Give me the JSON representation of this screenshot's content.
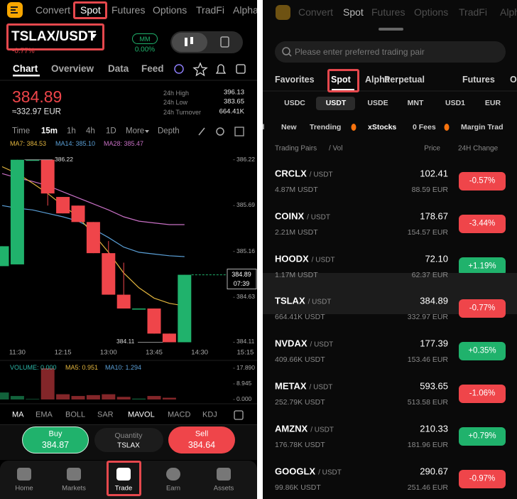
{
  "left": {
    "nav": [
      "Convert",
      "Spot",
      "Futures",
      "Options",
      "TradFi",
      "Alpha"
    ],
    "pair": "TSLAX/USDT",
    "pair_change": "-0.77%",
    "mm": "MM",
    "mm_value": "0.00%",
    "tabs": [
      "Chart",
      "Overview",
      "Data",
      "Feed"
    ],
    "price": "384.89",
    "price_eur": "≈332.97 EUR",
    "stats": [
      {
        "label": "24h High",
        "value": "396.13"
      },
      {
        "label": "24h Low",
        "value": "383.65"
      },
      {
        "label": "24h Turnover",
        "value": "664.41K"
      }
    ],
    "intervals": [
      "Time",
      "15m",
      "1h",
      "4h",
      "1D",
      "More",
      "Depth"
    ],
    "ma_legend": [
      {
        "text": "MA7: 384.53",
        "color": "#e2b53e"
      },
      {
        "text": "MA14: 385.10",
        "color": "#5a9fd6"
      },
      {
        "text": "MA28: 385.47",
        "color": "#c76fc4"
      }
    ],
    "chart": {
      "up_color": "#20b26c",
      "down_color": "#ef454a",
      "candles": [
        {
          "open": 384.99,
          "high": 385.22,
          "low": 384.99,
          "close": 385.22
        },
        {
          "open": 385.01,
          "high": 386.22,
          "low": 385.01,
          "close": 386.22
        },
        {
          "open": 386.22,
          "high": 386.22,
          "low": 386.22,
          "close": 386.22
        },
        {
          "open": 386.22,
          "high": 386.22,
          "low": 385.69,
          "close": 385.83
        },
        {
          "open": 385.79,
          "high": 385.79,
          "low": 385.6,
          "close": 385.6
        },
        {
          "open": 385.69,
          "high": 385.69,
          "low": 385.5,
          "close": 385.5
        },
        {
          "open": 385.5,
          "high": 385.5,
          "low": 385.14,
          "close": 385.14
        },
        {
          "open": 385.14,
          "high": 385.28,
          "low": 384.66,
          "close": 384.66
        },
        {
          "open": 384.66,
          "high": 385.03,
          "low": 384.5,
          "close": 384.5
        },
        {
          "open": 384.5,
          "high": 384.5,
          "low": 384.5,
          "close": 384.5
        },
        {
          "open": 384.5,
          "high": 384.5,
          "low": 384.21,
          "close": 384.21
        },
        {
          "open": 384.21,
          "high": 384.21,
          "low": 384.11,
          "close": 384.11
        },
        {
          "open": 384.11,
          "high": 384.89,
          "low": 384.11,
          "close": 384.89
        }
      ],
      "ma7": [
        386.14,
        386.06,
        385.95,
        385.83,
        385.69,
        385.56,
        385.36,
        385.15,
        384.91,
        384.74,
        384.62,
        384.56,
        384.53
      ],
      "ma14": [
        385.69,
        385.66,
        385.64,
        385.6,
        385.56,
        385.51,
        385.42,
        385.32,
        385.21,
        385.15,
        385.13,
        385.11,
        385.1
      ],
      "ma28": [
        386.06,
        386.01,
        385.97,
        385.92,
        385.85,
        385.78,
        385.71,
        385.64,
        385.56,
        385.51,
        385.49,
        385.47,
        385.47
      ],
      "ylim": [
        384.04,
        386.3
      ],
      "yticks": [
        386.22,
        385.69,
        385.16,
        384.63,
        384.11
      ],
      "xticks": [
        "11:30",
        "12:15",
        "13:00",
        "13:45",
        "14:30",
        "15:15"
      ],
      "high_label": "386.22",
      "low_label": "384.11",
      "last_price": "384.89",
      "countdown": "07:39",
      "volume": {
        "legend": [
          {
            "text": "VOLUME: 0.000",
            "color": "#2bb5a6"
          },
          {
            "text": "MA5: 0.951",
            "color": "#e2b53e"
          },
          {
            "text": "MA10: 1.294",
            "color": "#5a9fd6"
          }
        ],
        "values": [
          4,
          2,
          0.3,
          17.89,
          3,
          2,
          2.5,
          3,
          1.5,
          0.5,
          2,
          1,
          0
        ],
        "ylim": [
          0,
          19.92
        ],
        "yticks": [
          {
            "value": 17.89,
            "label": "17.890"
          },
          {
            "value": 8.945,
            "label": "8.945"
          },
          {
            "value": 0,
            "label": "0.000"
          }
        ]
      }
    },
    "indicators": [
      "MA",
      "EMA",
      "BOLL",
      "SAR",
      "MAVOL",
      "MACD",
      "KDJ"
    ],
    "buy": {
      "label": "Buy",
      "price": "384.87"
    },
    "quantity": {
      "label": "Quantity",
      "asset": "TSLAX"
    },
    "sell": {
      "label": "Sell",
      "price": "384.64"
    },
    "bottom_nav": [
      "Home",
      "Markets",
      "Trade",
      "Earn",
      "Assets"
    ]
  },
  "right": {
    "nav": [
      "Convert",
      "Spot",
      "Futures",
      "Options",
      "TradFi",
      "Alpha"
    ],
    "search_placeholder": "Please enter preferred trading pair",
    "tabs": [
      "Favorites",
      "Spot",
      "Alpha",
      "Perpetual",
      "Futures",
      "O"
    ],
    "quotes": [
      "USDC",
      "USDT",
      "USDE",
      "MNT",
      "USD1",
      "EUR"
    ],
    "filters": [
      "All",
      "New",
      "Trending",
      "xStocks",
      "0 Fees",
      "Margin Trad"
    ],
    "header": {
      "pairs": "Trading Pairs",
      "vol": "/ Vol",
      "price": "Price",
      "change": "24H Change"
    },
    "rows": [
      {
        "symbol": "CRCLX",
        "quote": "/ USDT",
        "volume": "4.87M USDT",
        "price": "102.41",
        "price_eur": "88.59 EUR",
        "change": "-0.57%",
        "selected": false
      },
      {
        "symbol": "COINX",
        "quote": "/ USDT",
        "volume": "2.21M USDT",
        "price": "178.67",
        "price_eur": "154.57 EUR",
        "change": "-3.44%",
        "selected": false
      },
      {
        "symbol": "HOODX",
        "quote": "/ USDT",
        "volume": "1.17M USDT",
        "price": "72.10",
        "price_eur": "62.37 EUR",
        "change": "+1.19%",
        "selected": false
      },
      {
        "symbol": "TSLAX",
        "quote": "/ USDT",
        "volume": "664.41K USDT",
        "price": "384.89",
        "price_eur": "332.97 EUR",
        "change": "-0.77%",
        "selected": true
      },
      {
        "symbol": "NVDAX",
        "quote": "/ USDT",
        "volume": "409.66K USDT",
        "price": "177.39",
        "price_eur": "153.46 EUR",
        "change": "+0.35%",
        "selected": false
      },
      {
        "symbol": "METAX",
        "quote": "/ USDT",
        "volume": "252.79K USDT",
        "price": "593.65",
        "price_eur": "513.58 EUR",
        "change": "-1.06%",
        "selected": false
      },
      {
        "symbol": "AMZNX",
        "quote": "/ USDT",
        "volume": "176.78K USDT",
        "price": "210.33",
        "price_eur": "181.96 EUR",
        "change": "+0.79%",
        "selected": false
      },
      {
        "symbol": "GOOGLX",
        "quote": "/ USDT",
        "volume": "99.86K USDT",
        "price": "290.67",
        "price_eur": "251.46 EUR",
        "change": "-0.97%",
        "selected": false
      }
    ]
  }
}
